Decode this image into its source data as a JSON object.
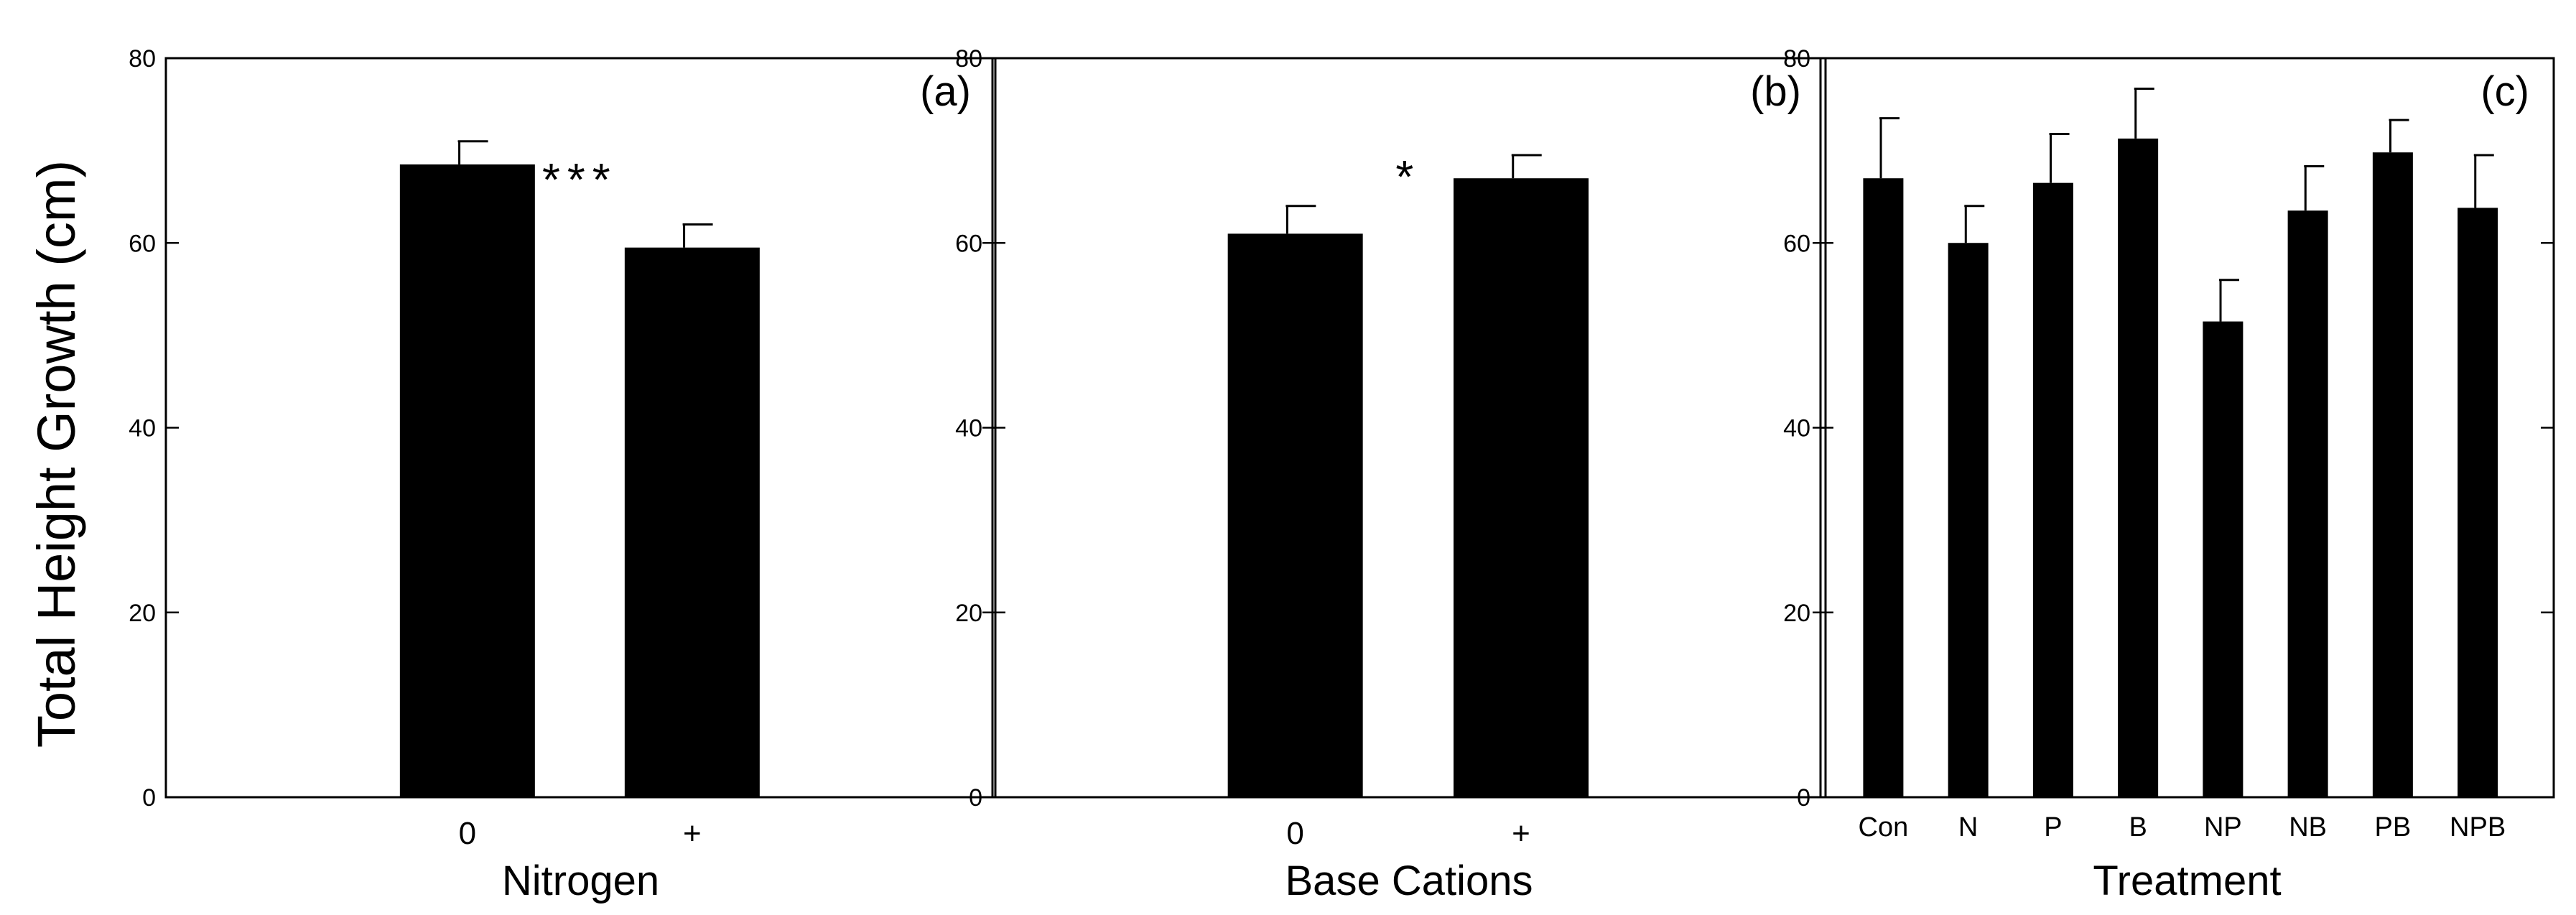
{
  "ylabel": "Total Height Growth (cm)",
  "chart_data": [
    {
      "type": "bar",
      "panel_label": "(a)",
      "xlabel": "Nitrogen",
      "categories": [
        "0",
        "+"
      ],
      "values": [
        68.5,
        59.5
      ],
      "errors": [
        2.5,
        2.5
      ],
      "ylim": [
        0,
        80
      ],
      "yticks": [
        "0",
        "20",
        "40",
        "60",
        "80"
      ],
      "significance": "***",
      "bar_color": "#000000"
    },
    {
      "type": "bar",
      "panel_label": "(b)",
      "xlabel": "Base Cations",
      "categories": [
        "0",
        "+"
      ],
      "values": [
        61,
        67
      ],
      "errors": [
        3,
        2.5
      ],
      "ylim": [
        0,
        80
      ],
      "yticks": [
        "0",
        "20",
        "40",
        "60",
        "80"
      ],
      "significance": "*",
      "bar_color": "#000000"
    },
    {
      "type": "bar",
      "panel_label": "(c)",
      "xlabel": "Treatment",
      "categories": [
        "Con",
        "N",
        "P",
        "B",
        "NP",
        "NB",
        "PB",
        "NPB"
      ],
      "values": [
        67,
        60,
        66.5,
        71.3,
        51.5,
        63.5,
        69.8,
        63.8
      ],
      "errors": [
        6.5,
        4,
        5.3,
        5.4,
        4.5,
        4.8,
        3.5,
        5.7
      ],
      "ylim": [
        0,
        80
      ],
      "yticks": [
        "0",
        "20",
        "40",
        "60",
        "80"
      ],
      "significance": "",
      "bar_color": "#000000"
    }
  ]
}
